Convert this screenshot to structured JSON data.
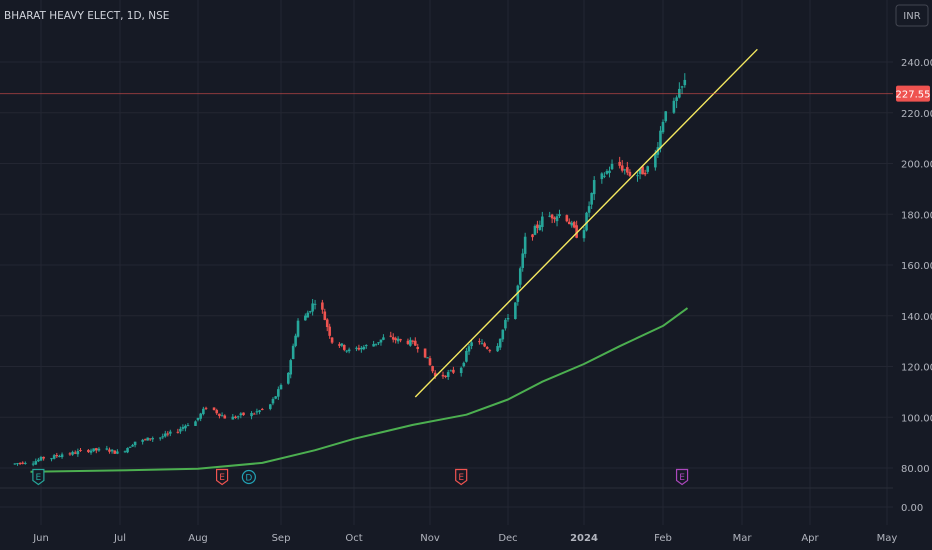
{
  "chart_data": {
    "type": "candlestick",
    "title": "BHARAT HEAVY ELECT, 1D, NSE",
    "currency": "INR",
    "last_price": 227.55,
    "y_ticks": [
      0,
      80,
      100,
      120,
      140,
      160,
      180,
      200,
      220,
      240
    ],
    "y_tick_labels": [
      "0.00",
      "80.00",
      "100.00",
      "120.00",
      "140.00",
      "160.00",
      "180.00",
      "200.00",
      "220.00",
      "240.00"
    ],
    "x_ticks": [
      "2023-06-01",
      "2023-07-01",
      "2023-08-01",
      "2023-09-01",
      "2023-10-01",
      "2023-11-01",
      "2023-12-01",
      "2024-01-01",
      "2024-02-01",
      "2024-03-01",
      "2024-04-01",
      "2024-05-01"
    ],
    "x_tick_labels": [
      "Jun",
      "Jul",
      "Aug",
      "Sep",
      "Oct",
      "Nov",
      "Dec",
      "2024",
      "Feb",
      "Mar",
      "Apr",
      "May"
    ],
    "closes": [
      [
        "2023-05-22",
        82.5
      ],
      [
        "2023-05-29",
        84.0
      ],
      [
        "2023-06-05",
        85.5
      ],
      [
        "2023-06-12",
        86.5
      ],
      [
        "2023-06-19",
        87.0
      ],
      [
        "2023-06-26",
        86.0
      ],
      [
        "2023-07-03",
        90.5
      ],
      [
        "2023-07-10",
        92.0
      ],
      [
        "2023-07-17",
        93.5
      ],
      [
        "2023-07-24",
        97.5
      ],
      [
        "2023-07-31",
        104.0
      ],
      [
        "2023-08-07",
        100.0
      ],
      [
        "2023-08-14",
        101.0
      ],
      [
        "2023-08-21",
        103.0
      ],
      [
        "2023-08-28",
        112.0
      ],
      [
        "2023-09-04",
        138.0
      ],
      [
        "2023-09-11",
        146.0
      ],
      [
        "2023-09-18",
        130.0
      ],
      [
        "2023-09-25",
        126.0
      ],
      [
        "2023-10-02",
        128.0
      ],
      [
        "2023-10-09",
        131.0
      ],
      [
        "2023-10-16",
        130.0
      ],
      [
        "2023-10-23",
        128.0
      ],
      [
        "2023-10-30",
        116.0
      ],
      [
        "2023-11-06",
        118.0
      ],
      [
        "2023-11-13",
        130.0
      ],
      [
        "2023-11-20",
        127.0
      ],
      [
        "2023-11-27",
        140.0
      ],
      [
        "2023-12-04",
        170.0
      ],
      [
        "2023-12-11",
        178.0
      ],
      [
        "2023-12-18",
        180.0
      ],
      [
        "2023-12-25",
        172.0
      ],
      [
        "2024-01-01",
        192.0
      ],
      [
        "2024-01-08",
        199.0
      ],
      [
        "2024-01-15",
        196.0
      ],
      [
        "2024-01-22",
        198.0
      ],
      [
        "2024-01-29",
        222.0
      ],
      [
        "2024-02-05",
        232.0
      ],
      [
        "2024-02-12",
        227.55
      ]
    ],
    "series": [
      {
        "type": "line",
        "values": [
          [
            "2023-05-28",
            72.5
          ],
          [
            "2023-07-01",
            75.0
          ],
          [
            "2023-08-01",
            78.5
          ],
          [
            "2023-08-25",
            82.0
          ],
          [
            "2023-09-15",
            87.0
          ],
          [
            "2023-10-01",
            91.5
          ],
          [
            "2023-10-25",
            97.0
          ],
          [
            "2023-11-15",
            101.0
          ],
          [
            "2023-12-01",
            107.0
          ],
          [
            "2023-12-15",
            114.0
          ],
          [
            "2024-01-01",
            121.0
          ],
          [
            "2024-01-15",
            128.0
          ],
          [
            "2024-02-01",
            136.0
          ],
          [
            "2024-02-10",
            143.0
          ]
        ]
      }
    ],
    "trendline": {
      "start": [
        "2023-10-26",
        108
      ],
      "end": [
        "2024-03-08",
        245
      ]
    },
    "event_markers": [
      {
        "date": "2023-05-31",
        "label": "E"
      },
      {
        "date": "2023-08-10",
        "label": "E"
      },
      {
        "date": "2023-08-20",
        "label": "D"
      },
      {
        "date": "2023-11-13",
        "label": "E"
      },
      {
        "date": "2024-02-08",
        "label": "E"
      }
    ],
    "colors": {
      "up": "#26a69a",
      "down": "#ef5350",
      "ma": "#4caf50",
      "trendline": "#f5e960",
      "price_label": "#ef5350",
      "background": "#161a25",
      "grid": "#232632"
    }
  }
}
